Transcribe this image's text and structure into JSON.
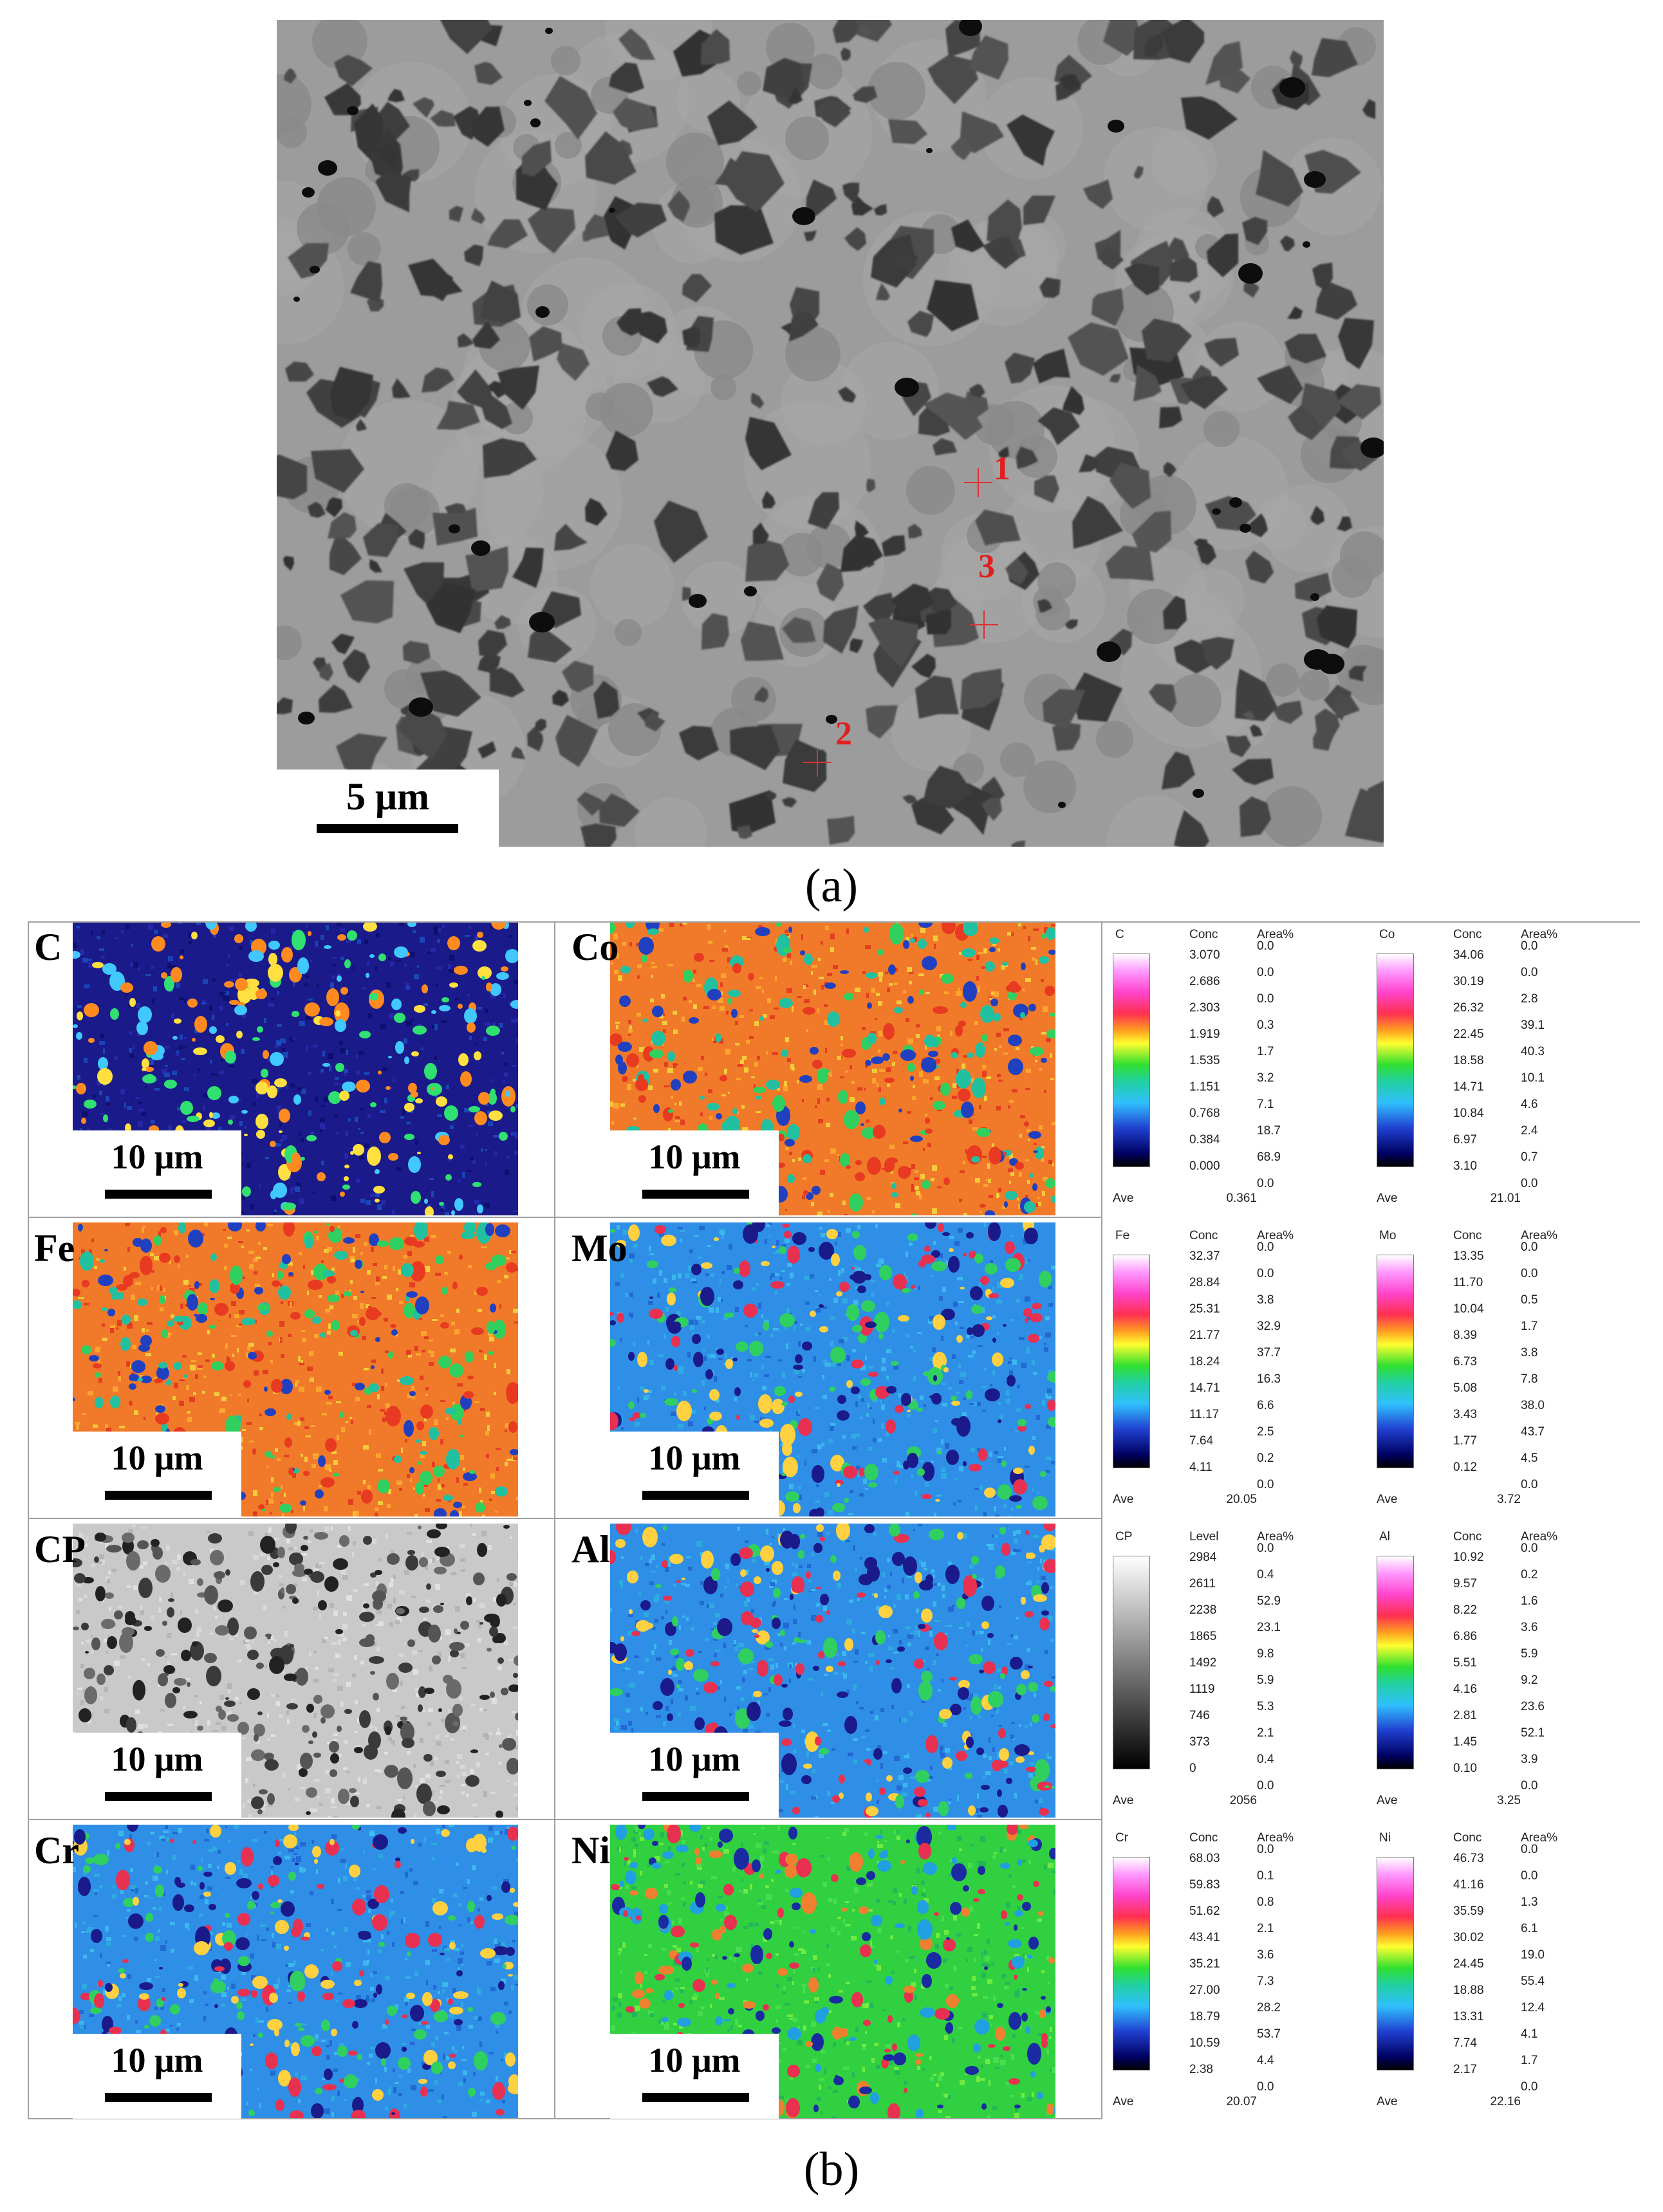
{
  "panel_a": {
    "scale_label": "5 μm",
    "points": [
      {
        "label": "1"
      },
      {
        "label": "2"
      },
      {
        "label": "3"
      }
    ],
    "caption": "(a)"
  },
  "panel_b": {
    "caption": "(b)",
    "scale_label": "10 μm",
    "maps": [
      {
        "element": "C",
        "colormap": "rainbow-low"
      },
      {
        "element": "Co",
        "colormap": "rainbow-high"
      },
      {
        "element": "Fe",
        "colormap": "rainbow-high"
      },
      {
        "element": "Mo",
        "colormap": "rainbow-mid-low"
      },
      {
        "element": "CP",
        "colormap": "gray"
      },
      {
        "element": "Al",
        "colormap": "rainbow-mid-low"
      },
      {
        "element": "Cr",
        "colormap": "rainbow-mid-low"
      },
      {
        "element": "Ni",
        "colormap": "rainbow-mid"
      }
    ],
    "legends": [
      {
        "element": "C",
        "h1": "Conc",
        "h2": "Area%",
        "gradient": "rainbow",
        "values": [
          "3.070",
          "2.686",
          "2.303",
          "1.919",
          "1.535",
          "1.151",
          "0.768",
          "0.384",
          "0.000"
        ],
        "areas": [
          "0.0",
          "0.0",
          "0.0",
          "0.3",
          "1.7",
          "3.2",
          "7.1",
          "18.7",
          "68.9",
          "0.0"
        ],
        "ave_label": "Ave",
        "ave": "0.361"
      },
      {
        "element": "Co",
        "h1": "Conc",
        "h2": "Area%",
        "gradient": "rainbow",
        "values": [
          "34.06",
          "30.19",
          "26.32",
          "22.45",
          "18.58",
          "14.71",
          "10.84",
          "6.97",
          "3.10"
        ],
        "areas": [
          "0.0",
          "0.0",
          "2.8",
          "39.1",
          "40.3",
          "10.1",
          "4.6",
          "2.4",
          "0.7",
          "0.0"
        ],
        "ave_label": "Ave",
        "ave": "21.01"
      },
      {
        "element": "Fe",
        "h1": "Conc",
        "h2": "Area%",
        "gradient": "rainbow",
        "values": [
          "32.37",
          "28.84",
          "25.31",
          "21.77",
          "18.24",
          "14.71",
          "11.17",
          "7.64",
          "4.11"
        ],
        "areas": [
          "0.0",
          "0.0",
          "3.8",
          "32.9",
          "37.7",
          "16.3",
          "6.6",
          "2.5",
          "0.2",
          "0.0"
        ],
        "ave_label": "Ave",
        "ave": "20.05"
      },
      {
        "element": "Mo",
        "h1": "Conc",
        "h2": "Area%",
        "gradient": "rainbow",
        "values": [
          "13.35",
          "11.70",
          "10.04",
          "8.39",
          "6.73",
          "5.08",
          "3.43",
          "1.77",
          "0.12"
        ],
        "areas": [
          "0.0",
          "0.0",
          "0.5",
          "1.7",
          "3.8",
          "7.8",
          "38.0",
          "43.7",
          "4.5",
          "0.0"
        ],
        "ave_label": "Ave",
        "ave": "3.72"
      },
      {
        "element": "CP",
        "h1": "Level",
        "h2": "Area%",
        "gradient": "gray",
        "values": [
          "2984",
          "2611",
          "2238",
          "1865",
          "1492",
          "1119",
          "746",
          "373",
          "0"
        ],
        "areas": [
          "0.0",
          "0.4",
          "52.9",
          "23.1",
          "9.8",
          "5.9",
          "5.3",
          "2.1",
          "0.4",
          "0.0"
        ],
        "ave_label": "Ave",
        "ave": "2056"
      },
      {
        "element": "Al",
        "h1": "Conc",
        "h2": "Area%",
        "gradient": "rainbow",
        "values": [
          "10.92",
          "9.57",
          "8.22",
          "6.86",
          "5.51",
          "4.16",
          "2.81",
          "1.45",
          "0.10"
        ],
        "areas": [
          "0.0",
          "0.2",
          "1.6",
          "3.6",
          "5.9",
          "9.2",
          "23.6",
          "52.1",
          "3.9",
          "0.0"
        ],
        "ave_label": "Ave",
        "ave": "3.25"
      },
      {
        "element": "Cr",
        "h1": "Conc",
        "h2": "Area%",
        "gradient": "rainbow",
        "values": [
          "68.03",
          "59.83",
          "51.62",
          "43.41",
          "35.21",
          "27.00",
          "18.79",
          "10.59",
          "2.38"
        ],
        "areas": [
          "0.0",
          "0.1",
          "0.8",
          "2.1",
          "3.6",
          "7.3",
          "28.2",
          "53.7",
          "4.4",
          "0.0"
        ],
        "ave_label": "Ave",
        "ave": "20.07"
      },
      {
        "element": "Ni",
        "h1": "Conc",
        "h2": "Area%",
        "gradient": "rainbow",
        "values": [
          "46.73",
          "41.16",
          "35.59",
          "30.02",
          "24.45",
          "18.88",
          "13.31",
          "7.74",
          "2.17"
        ],
        "areas": [
          "0.0",
          "0.0",
          "1.3",
          "6.1",
          "19.0",
          "55.4",
          "12.4",
          "4.1",
          "1.7",
          "0.0"
        ],
        "ave_label": "Ave",
        "ave": "22.16"
      }
    ]
  }
}
